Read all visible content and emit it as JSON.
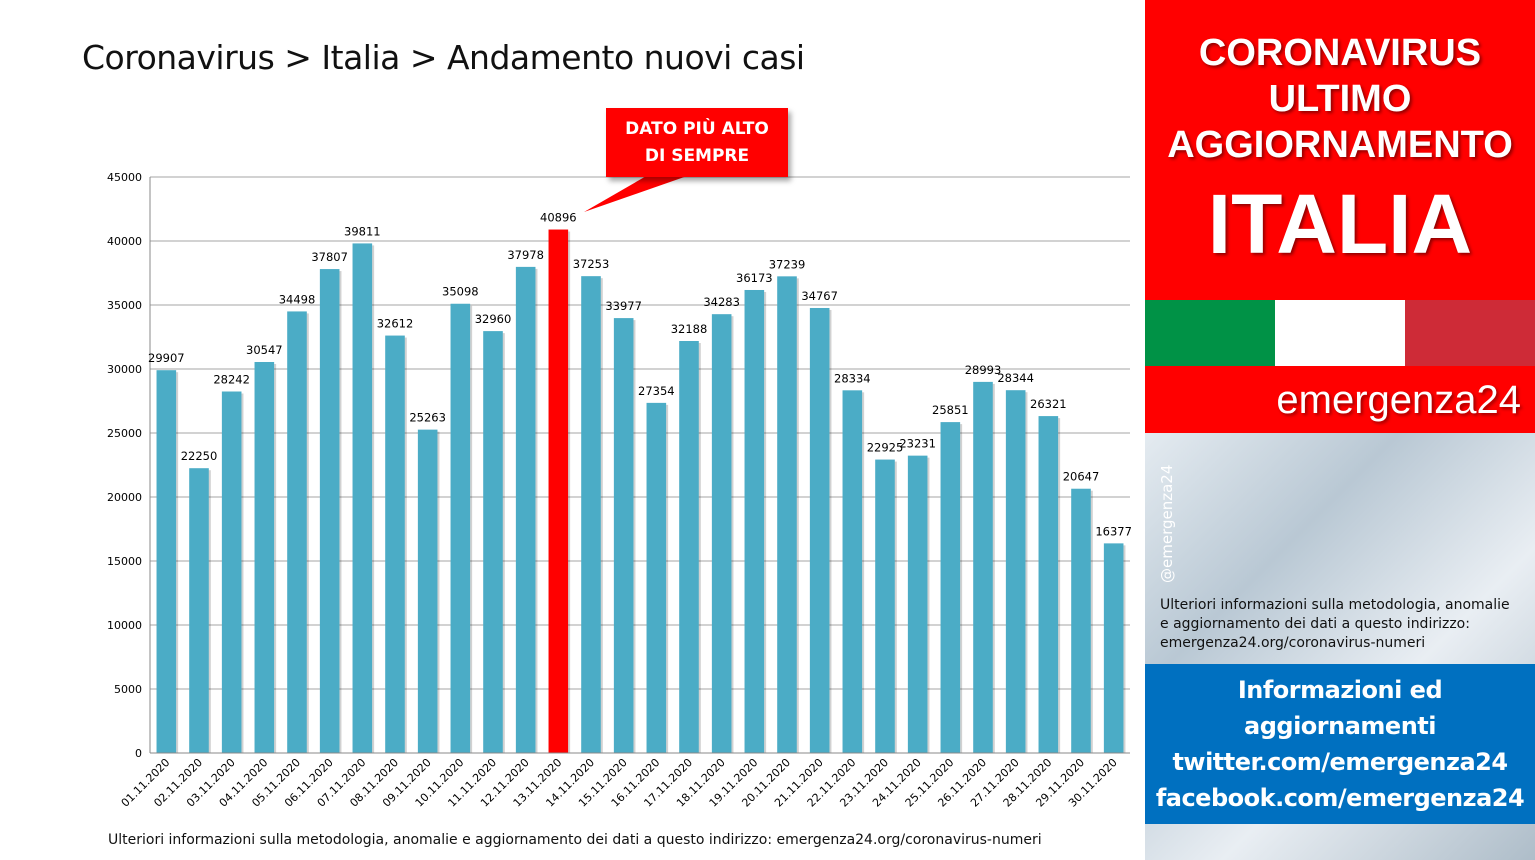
{
  "title": "Coronavirus > Italia > Andamento nuovi casi",
  "callout": {
    "line1": "DATO PIÙ ALTO",
    "line2": "DI SEMPRE"
  },
  "bottom_note": "Ulteriori informazioni sulla metodologia, anomalie e aggiornamento dei dati a questo indirizzo: emergenza24.org/coronavirus-numeri",
  "chart_data": {
    "type": "bar",
    "title": "Coronavirus > Italia > Andamento nuovi casi",
    "xlabel": "",
    "ylabel": "",
    "ylim": [
      0,
      45000
    ],
    "yticks": [
      0,
      5000,
      10000,
      15000,
      20000,
      25000,
      30000,
      35000,
      40000,
      45000
    ],
    "grid": true,
    "legend": "none",
    "categories": [
      "01.11.2020",
      "02.11.2020",
      "03.11.2020",
      "04.11.2020",
      "05.11.2020",
      "06.11.2020",
      "07.11.2020",
      "08.11.2020",
      "09.11.2020",
      "10.11.2020",
      "11.11.2020",
      "12.11.2020",
      "13.11.2020",
      "14.11.2020",
      "15.11.2020",
      "16.11.2020",
      "17.11.2020",
      "18.11.2020",
      "19.11.2020",
      "20.11.2020",
      "21.11.2020",
      "22.11.2020",
      "23.11.2020",
      "24.11.2020",
      "25.11.2020",
      "26.11.2020",
      "27.11.2020",
      "28.11.2020",
      "29.11.2020",
      "30.11.2020"
    ],
    "values": [
      29907,
      22250,
      28242,
      30547,
      34498,
      37807,
      39811,
      32612,
      25263,
      35098,
      32960,
      37978,
      40896,
      37253,
      33977,
      27354,
      32188,
      34283,
      36173,
      37239,
      34767,
      28334,
      22925,
      23231,
      25851,
      28993,
      28344,
      26321,
      20647,
      16377
    ],
    "highlight_category": "13.11.2020",
    "colors": {
      "bar": "#4bacc6",
      "highlight": "#ff0000"
    }
  },
  "panel": {
    "header_line1": "CORONAVIRUS",
    "header_line2": "ULTIMO",
    "header_line3": "AGGIORNAMENTO",
    "header_line4": "ITALIA",
    "brand": "emergenza24",
    "handle": "@emergenza24",
    "note_line1": "Ulteriori informazioni sulla metodologia, anomalie",
    "note_line2": "e aggiornamento dei dati a questo indirizzo:",
    "note_line3": "emergenza24.org/coronavirus-numeri",
    "info_line1": "Informazioni ed",
    "info_line2": "aggiornamenti",
    "info_line3": "twitter.com/emergenza24",
    "info_line4": "facebook.com/emergenza24",
    "colors": {
      "red": "#ff0000",
      "blue": "#0070c0",
      "flag_green": "#009246",
      "flag_white": "#ffffff",
      "flag_red": "#ce2b37"
    }
  }
}
